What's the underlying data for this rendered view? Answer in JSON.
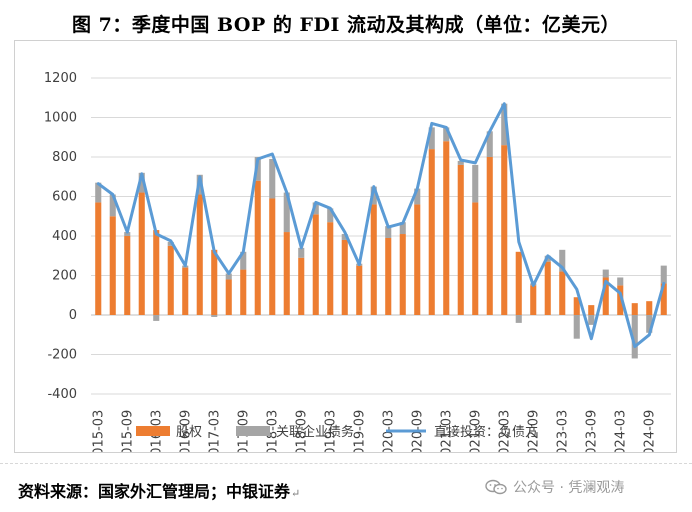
{
  "title": "图 7：季度中国 BOP 的 FDI 流动及其构成（单位：亿美元）",
  "source": "资料来源：国家外汇管理局；中银证券",
  "source_mark": "↵",
  "watermark": "公众号 · 凭澜观涛",
  "colors": {
    "equity": "#ED7D31",
    "debt": "#A5A5A5",
    "liability": "#5B9BD5",
    "grid": "#D9D9D9"
  },
  "chart_data": {
    "type": "bar",
    "stacked": true,
    "title": "",
    "xlabel": "",
    "ylabel": "",
    "ylim": [
      -400,
      1200
    ],
    "yticks": [
      1200,
      1000,
      800,
      600,
      400,
      200,
      0,
      -200,
      -400
    ],
    "grid": true,
    "legend_position": "bottom",
    "x_tick_labels": [
      "2015-03",
      "2015-09",
      "2016-03",
      "2016-09",
      "2017-03",
      "2017-09",
      "2018-03",
      "2018-09",
      "2019-03",
      "2019-09",
      "2020-03",
      "2020-09",
      "2021-03",
      "2021-09",
      "2022-03",
      "2022-09",
      "2023-03",
      "2023-09",
      "2024-03",
      "2024-09"
    ],
    "categories": [
      "2015-03",
      "2015-06",
      "2015-09",
      "2015-12",
      "2016-03",
      "2016-06",
      "2016-09",
      "2016-12",
      "2017-03",
      "2017-06",
      "2017-09",
      "2017-12",
      "2018-03",
      "2018-06",
      "2018-09",
      "2018-12",
      "2019-03",
      "2019-06",
      "2019-09",
      "2019-12",
      "2020-03",
      "2020-06",
      "2020-09",
      "2020-12",
      "2021-03",
      "2021-06",
      "2021-09",
      "2021-12",
      "2022-03",
      "2022-06",
      "2022-09",
      "2022-12",
      "2023-03",
      "2023-06",
      "2023-09",
      "2023-12",
      "2024-03",
      "2024-06",
      "2024-09",
      "2024-12"
    ],
    "series": [
      {
        "name": "股权",
        "kind": "bar",
        "values": [
          570,
          500,
          400,
          620,
          430,
          350,
          240,
          610,
          330,
          180,
          230,
          680,
          590,
          420,
          290,
          510,
          470,
          380,
          250,
          560,
          390,
          410,
          560,
          840,
          880,
          760,
          570,
          800,
          860,
          320,
          150,
          270,
          220,
          90,
          50,
          190,
          150,
          60,
          70,
          160
        ]
      },
      {
        "name": "关联企业债务",
        "kind": "bar",
        "values": [
          100,
          110,
          20,
          100,
          -30,
          20,
          10,
          100,
          -10,
          30,
          90,
          120,
          200,
          200,
          50,
          60,
          70,
          30,
          10,
          90,
          60,
          60,
          80,
          110,
          70,
          20,
          190,
          130,
          210,
          -40,
          10,
          30,
          110,
          -120,
          -50,
          40,
          40,
          -220,
          -90,
          90
        ]
      },
      {
        "name": "直接投资：负债方",
        "kind": "line",
        "values": [
          665,
          610,
          420,
          715,
          410,
          375,
          250,
          700,
          320,
          210,
          320,
          790,
          815,
          620,
          340,
          570,
          540,
          420,
          255,
          650,
          445,
          465,
          640,
          970,
          950,
          785,
          770,
          930,
          1070,
          370,
          150,
          300,
          240,
          130,
          -120,
          170,
          110,
          -160,
          -100,
          160
        ]
      }
    ]
  }
}
